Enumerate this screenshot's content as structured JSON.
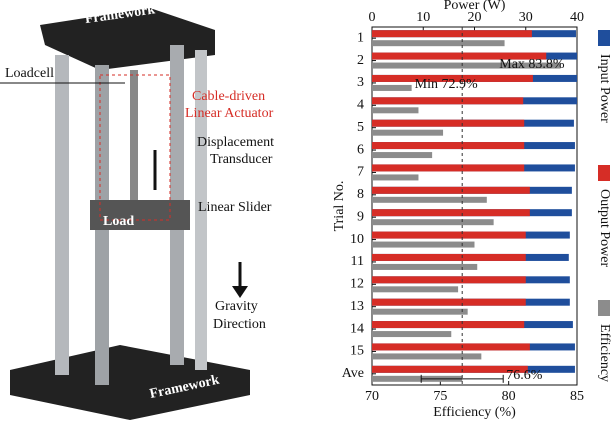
{
  "photo": {
    "framework_top": "Framework",
    "loadcell": "Loadcell",
    "actuator": [
      "Cable-driven",
      "Linear Actuator"
    ],
    "transducer": [
      "Displacement",
      "Transducer"
    ],
    "slider": "Linear Slider",
    "load": "Load",
    "gravity": [
      "Gravity",
      "Direction"
    ],
    "framework_bottom": "Framework"
  },
  "chart_data": {
    "type": "bar",
    "orientation": "horizontal",
    "x_label": "Power (W)",
    "x2_label": "Efficiency (%)",
    "y_label": "Trial No.",
    "categories": [
      "1",
      "2",
      "3",
      "4",
      "5",
      "6",
      "7",
      "8",
      "9",
      "10",
      "11",
      "12",
      "13",
      "14",
      "15",
      "Ave"
    ],
    "xlim": [
      0,
      40
    ],
    "xticks": [
      0,
      10,
      20,
      30,
      40
    ],
    "x2lim": [
      70,
      85
    ],
    "x2ticks": [
      70,
      75,
      80,
      85
    ],
    "legend": "right",
    "series": [
      {
        "name": "Input Power",
        "color": "#1f4e9c",
        "values": [
          39.8,
          40,
          40,
          40,
          39.4,
          39.6,
          39.6,
          39,
          39,
          38.6,
          38.4,
          38.6,
          38.6,
          39.2,
          39.6,
          39.6
        ]
      },
      {
        "name": "Output Power",
        "color": "#d62d26",
        "values": [
          31.2,
          34,
          31.4,
          29.5,
          29.7,
          29.7,
          29.7,
          30.8,
          30.8,
          30,
          30,
          30,
          30,
          29.7,
          30.8,
          30.4
        ]
      },
      {
        "name": "Efficiency",
        "color": "#8c8c8c",
        "axis": "x2",
        "values": [
          79.7,
          83.8,
          72.9,
          73.4,
          75.2,
          74.4,
          73.4,
          78.4,
          78.9,
          77.5,
          77.7,
          76.3,
          77.0,
          75.8,
          78.0,
          76.6
        ],
        "value_labels": [
          null,
          "Max 83.8%",
          "Min 72.9%",
          null,
          null,
          null,
          null,
          null,
          null,
          null,
          null,
          null,
          null,
          null,
          null,
          "76.6%"
        ],
        "errors": [
          null,
          null,
          null,
          null,
          null,
          null,
          null,
          null,
          null,
          null,
          null,
          null,
          null,
          null,
          null,
          3.0
        ]
      }
    ]
  }
}
